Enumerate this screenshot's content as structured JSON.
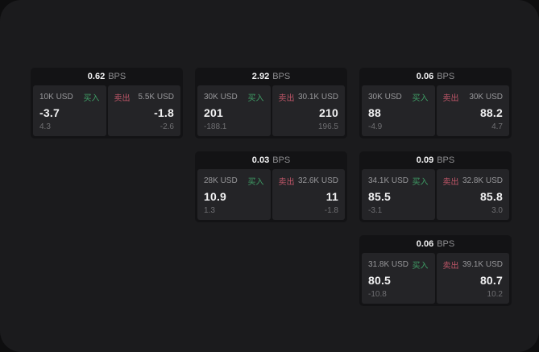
{
  "labels": {
    "bps_unit": "BPS",
    "buy": "买入",
    "sell": "卖出"
  },
  "colors": {
    "outer_bg": "#0e0e0f",
    "page_bg": "#1b1b1d",
    "card_bg": "#131315",
    "panel_bg": "#242427",
    "text_primary": "#f2f2f3",
    "text_label": "#98989b",
    "text_sub": "#6f6f72",
    "buy_green": "#3f9e66",
    "sell_red": "#bf5668"
  },
  "cards": [
    {
      "row": 0,
      "col": 0,
      "bps": "0.62",
      "buy": {
        "amount": "10K USD",
        "value": "-3.7",
        "sub": "4.3"
      },
      "sell": {
        "amount": "5.5K USD",
        "value": "-1.8",
        "sub": "-2.6"
      }
    },
    {
      "row": 0,
      "col": 1,
      "bps": "2.92",
      "buy": {
        "amount": "30K USD",
        "value": "201",
        "sub": "-188.1"
      },
      "sell": {
        "amount": "30.1K USD",
        "value": "210",
        "sub": "196.5"
      }
    },
    {
      "row": 0,
      "col": 2,
      "bps": "0.06",
      "buy": {
        "amount": "30K USD",
        "value": "88",
        "sub": "-4.9"
      },
      "sell": {
        "amount": "30K USD",
        "value": "88.2",
        "sub": "4.7"
      }
    },
    {
      "row": 1,
      "col": 1,
      "bps": "0.03",
      "buy": {
        "amount": "28K USD",
        "value": "10.9",
        "sub": "1.3"
      },
      "sell": {
        "amount": "32.6K USD",
        "value": "11",
        "sub": "-1.8"
      }
    },
    {
      "row": 1,
      "col": 2,
      "bps": "0.09",
      "buy": {
        "amount": "34.1K USD",
        "value": "85.5",
        "sub": "-3.1"
      },
      "sell": {
        "amount": "32.8K USD",
        "value": "85.8",
        "sub": "3.0"
      }
    },
    {
      "row": 2,
      "col": 2,
      "bps": "0.06",
      "buy": {
        "amount": "31.8K USD",
        "value": "80.5",
        "sub": "-10.8"
      },
      "sell": {
        "amount": "39.1K USD",
        "value": "80.7",
        "sub": "10.2"
      }
    }
  ]
}
